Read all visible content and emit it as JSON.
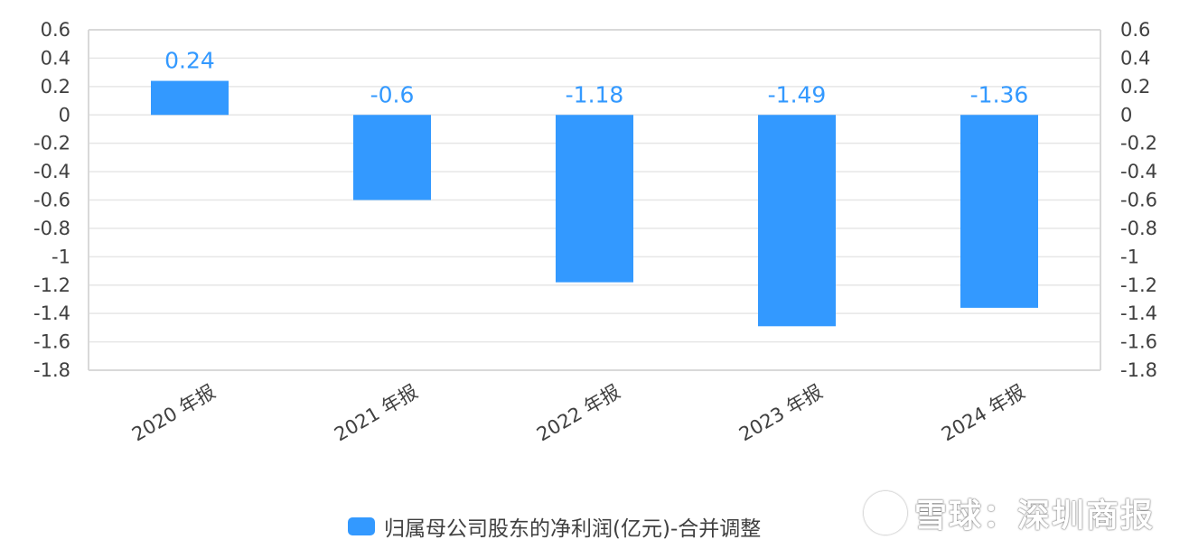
{
  "chart_data": {
    "type": "bar",
    "categories": [
      "2020 年报",
      "2021 年报",
      "2022 年报",
      "2023 年报",
      "2024 年报"
    ],
    "series": [
      {
        "name": "归属母公司股东的净利润(亿元)-合并调整",
        "values": [
          0.24,
          -0.6,
          -1.18,
          -1.49,
          -1.36
        ]
      }
    ],
    "data_labels": [
      "0.24",
      "-0.6",
      "-1.18",
      "-1.49",
      "-1.36"
    ],
    "ylim": [
      -1.8,
      0.6
    ],
    "y_ticks": [
      "0.6",
      "0.4",
      "0.2",
      "0",
      "-0.2",
      "-0.4",
      "-0.6",
      "-0.8",
      "-1",
      "-1.2",
      "-1.4",
      "-1.6",
      "-1.8"
    ],
    "y_tick_values": [
      0.6,
      0.4,
      0.2,
      0,
      -0.2,
      -0.4,
      -0.6,
      -0.8,
      -1,
      -1.2,
      -1.4,
      -1.6,
      -1.8
    ],
    "secondary_y_axis": true,
    "grid": true,
    "legend_position": "bottom",
    "bar_color": "#3399ff"
  },
  "legend": {
    "label": "归属母公司股东的净利润(亿元)-合并调整"
  },
  "watermark": {
    "text": "雪球：深圳商报"
  }
}
